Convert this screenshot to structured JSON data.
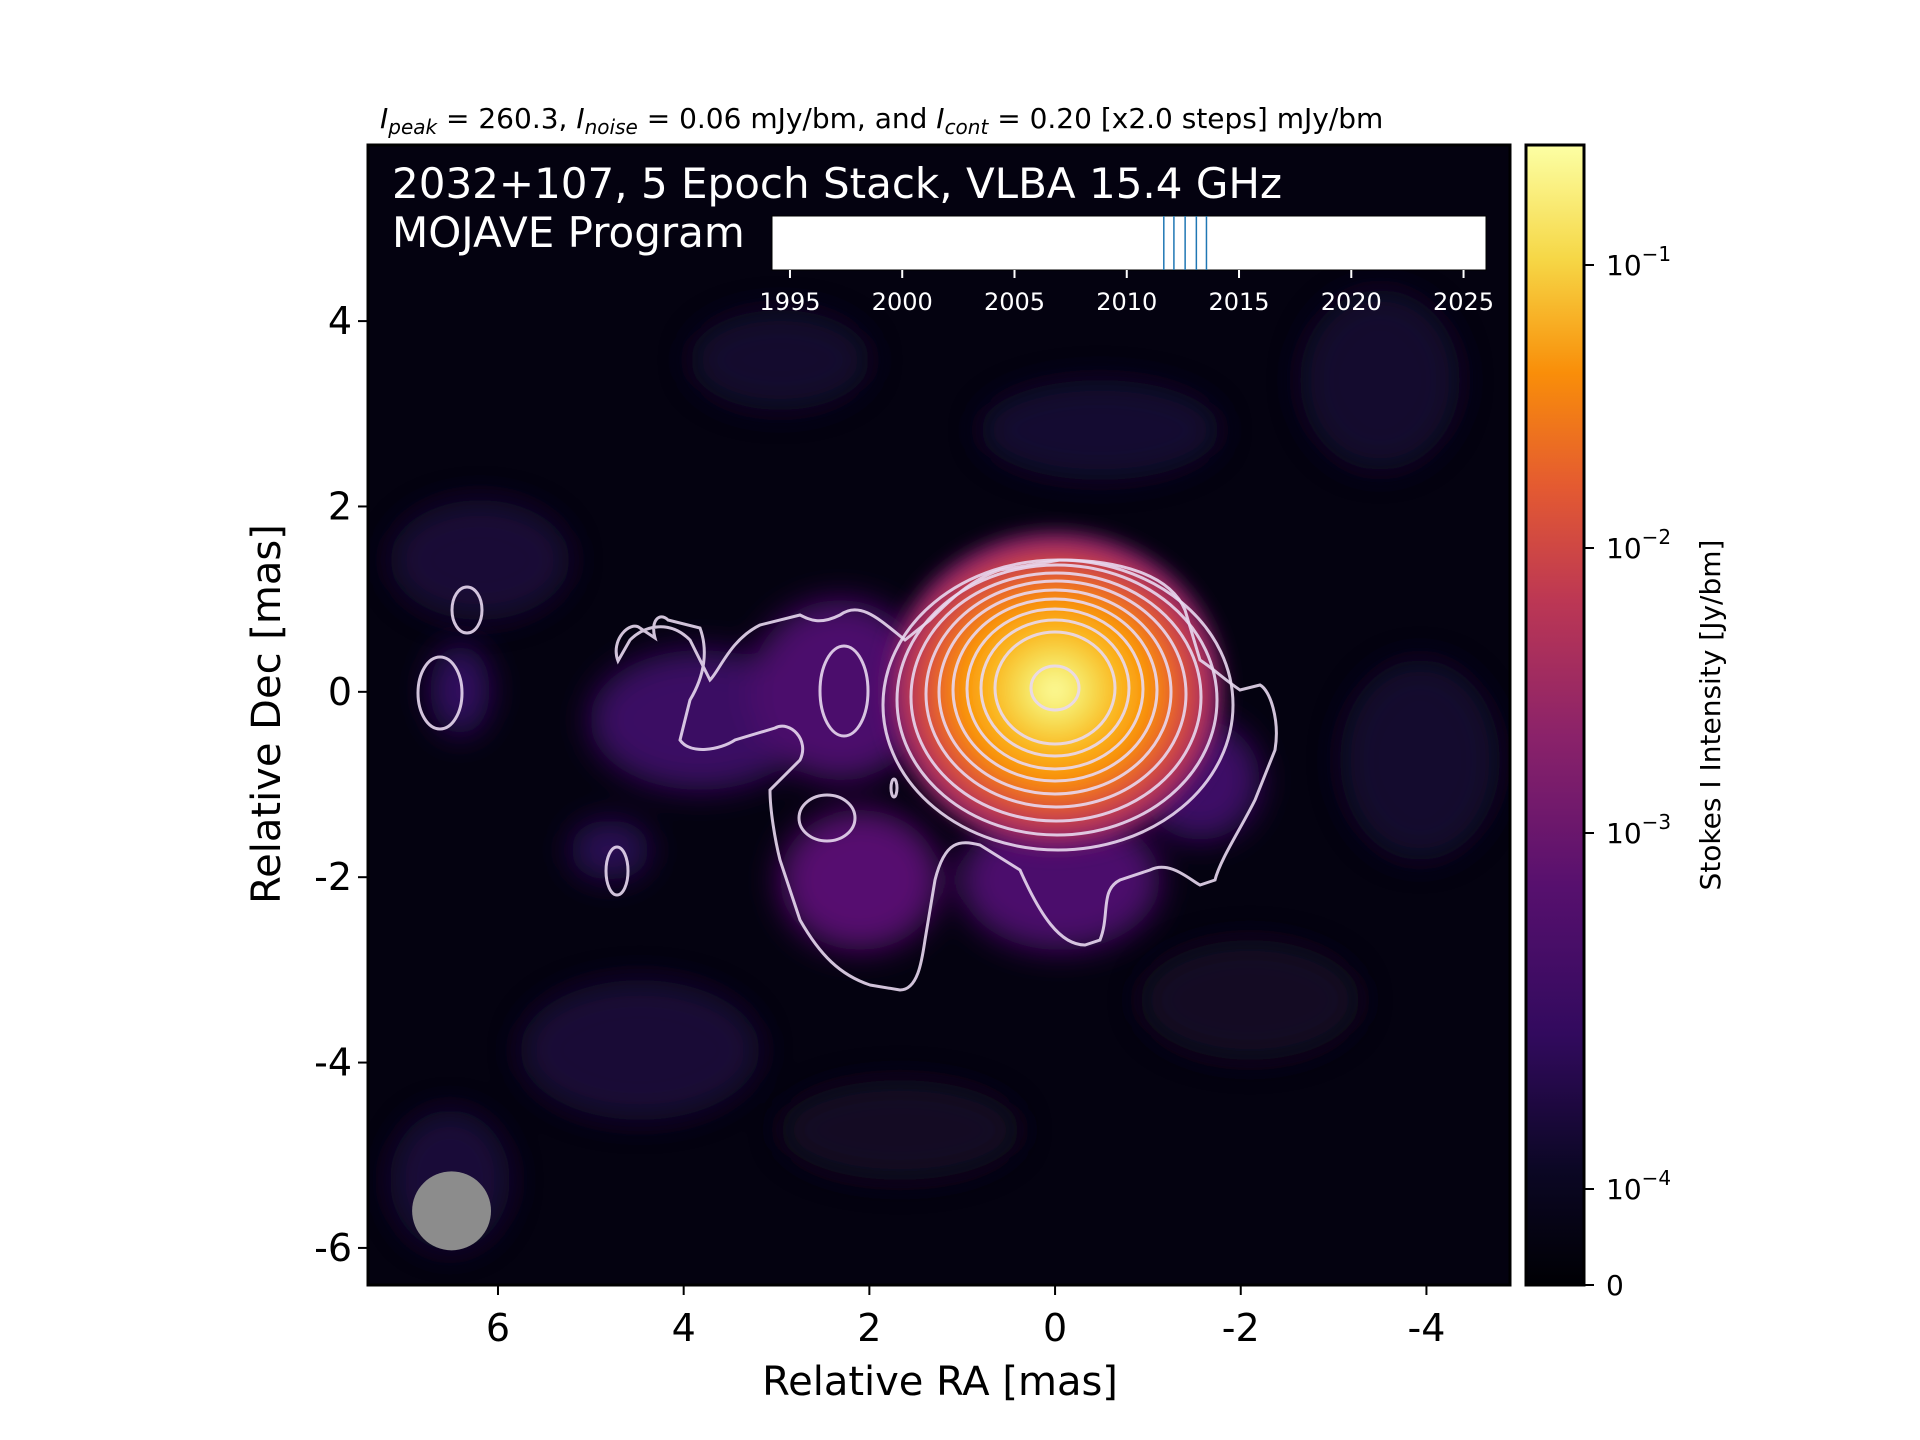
{
  "chart_data": {
    "type": "heatmap",
    "header": {
      "peak_sub": "peak",
      "peak_text": " = 260.3, ",
      "noise_sub": "noise",
      "noise_text": " = 0.06 mJy/bm, and ",
      "cont_sub": "cont",
      "cont_text": " = 0.20 [x2.0 steps] mJy/bm"
    },
    "title_line1": "2032+107, 5 Epoch Stack, VLBA 15.4 GHz",
    "title_line2": "MOJAVE Program",
    "xlabel": "Relative RA [mas]",
    "ylabel": "Relative Dec [mas]",
    "xlim": [
      7.4,
      -4.9
    ],
    "ylim": [
      -6.4,
      5.9
    ],
    "x_ticks": [
      6,
      4,
      2,
      0,
      -2,
      -4
    ],
    "y_ticks": [
      4,
      2,
      0,
      -2,
      -4,
      -6
    ],
    "x_tick_labels": [
      "6",
      "4",
      "2",
      "0",
      "-2",
      "-4"
    ],
    "y_tick_labels": [
      "4",
      "2",
      "0",
      "-2",
      "-4",
      "-6"
    ],
    "peak_intensity_mJy_per_beam": 260.3,
    "noise_mJy_per_beam": 0.06,
    "contour_base_mJy_per_beam": 0.2,
    "contour_step_factor": 2.0,
    "core_position_mas": [
      0,
      0
    ],
    "beam": {
      "center_mas": [
        6.5,
        -5.6
      ],
      "diameter_mas": 0.85,
      "color": "#8c8c8c"
    },
    "colorbar": {
      "label": "Stokes I Intensity [Jy/bm]",
      "colormap": "inferno",
      "scale": "log",
      "tick_values": [
        0.1,
        0.01,
        0.001,
        0.0001,
        0
      ],
      "tick_labels": [
        {
          "base": "10",
          "exp": "−1"
        },
        {
          "base": "10",
          "exp": "−2"
        },
        {
          "base": "10",
          "exp": "−3"
        },
        {
          "base": "10",
          "exp": "−4"
        },
        {
          "base": "0",
          "exp": ""
        }
      ]
    },
    "epoch_timeline": {
      "years": [
        "1995",
        "2000",
        "2005",
        "2010",
        "2015",
        "2020",
        "2025"
      ],
      "year_values": [
        1995,
        2000,
        2005,
        2010,
        2015,
        2020,
        2025
      ],
      "range": [
        1994.2,
        2026.0
      ],
      "epochs": [
        2011.65,
        2012.1,
        2012.6,
        2013.1,
        2013.55
      ],
      "epoch_color": "#1f77b4"
    }
  }
}
